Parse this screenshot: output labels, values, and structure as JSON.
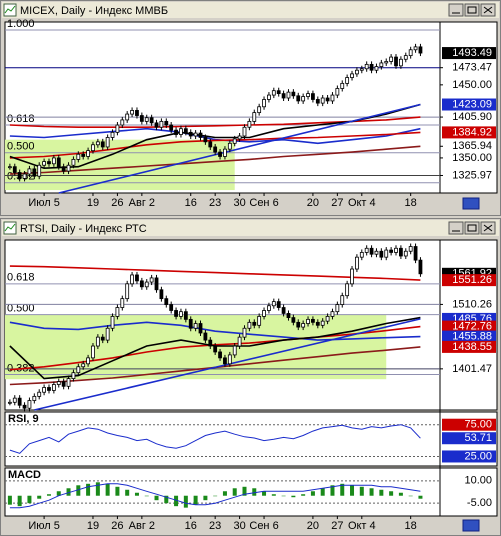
{
  "chart_data": [
    {
      "type": "candlestick",
      "title": "MICEX, Daily - Индекс ММВБ",
      "x": [
        -7,
        -6,
        -5,
        -4,
        -3,
        -2,
        -1,
        0,
        1,
        2,
        3,
        4,
        5,
        6,
        7,
        8,
        9,
        10,
        11,
        12,
        13,
        14,
        15,
        16,
        17,
        18,
        19,
        20,
        21,
        22,
        23,
        24,
        25,
        26,
        27,
        28,
        29,
        30,
        31,
        32,
        33,
        34,
        35,
        36,
        37,
        38,
        39,
        40,
        41,
        42,
        43,
        44,
        45,
        46,
        47,
        48,
        49,
        50,
        51,
        52,
        53,
        54,
        55,
        56,
        57,
        58,
        59,
        60,
        61,
        62,
        63,
        64,
        65,
        66,
        67,
        68,
        69,
        70,
        71,
        72,
        73,
        74,
        75,
        76,
        77
      ],
      "values": [
        1338,
        1330,
        1322,
        1328,
        1335,
        1325,
        1340,
        1345,
        1342,
        1350,
        1338,
        1332,
        1340,
        1348,
        1355,
        1352,
        1360,
        1368,
        1372,
        1365,
        1378,
        1385,
        1395,
        1402,
        1410,
        1415,
        1408,
        1400,
        1405,
        1398,
        1392,
        1400,
        1395,
        1388,
        1382,
        1390,
        1385,
        1380,
        1384,
        1378,
        1372,
        1365,
        1358,
        1352,
        1362,
        1370,
        1376,
        1380,
        1392,
        1400,
        1412,
        1420,
        1430,
        1436,
        1442,
        1438,
        1432,
        1440,
        1435,
        1428,
        1434,
        1438,
        1430,
        1425,
        1432,
        1428,
        1436,
        1445,
        1452,
        1460,
        1465,
        1470,
        1472,
        1478,
        1470,
        1475,
        1480,
        1482,
        1488,
        1476,
        1485,
        1490,
        1498,
        1502,
        1493.49
      ],
      "xlim": [
        -8,
        81
      ],
      "ylim": [
        1302,
        1536
      ],
      "xticks": [
        {
          "value": 0,
          "label": "Июл 5"
        },
        {
          "value": 10,
          "label": "19"
        },
        {
          "value": 15,
          "label": "26"
        },
        {
          "value": 20,
          "label": "Авг 2"
        },
        {
          "value": 30,
          "label": "16"
        },
        {
          "value": 35,
          "label": "23"
        },
        {
          "value": 40,
          "label": "30"
        },
        {
          "value": 45,
          "label": "Сен 6"
        },
        {
          "value": 55,
          "label": "20"
        },
        {
          "value": 60,
          "label": "27"
        },
        {
          "value": 65,
          "label": "Окт 4"
        },
        {
          "value": 75,
          "label": "18"
        }
      ],
      "yticks": [
        {
          "value": 1450,
          "label": "1450.00"
        },
        {
          "value": 1350,
          "label": "1350.00"
        }
      ],
      "fib_levels": [
        {
          "value": 1525,
          "label": "1.000"
        },
        {
          "value": 1395,
          "label": "0.618"
        },
        {
          "value": 1357,
          "label": "0.500"
        },
        {
          "value": 1316,
          "label": "0.382"
        }
      ],
      "fib_zone": {
        "x": [
          -8,
          39
        ],
        "y": [
          1306,
          1375
        ]
      },
      "hlines": [
        {
          "value": 1473.47,
          "color": "#000080"
        },
        {
          "value": 1325.97,
          "color": "#404040"
        },
        {
          "value": 1405.9,
          "color": "#8080a0"
        }
      ],
      "lines": [
        {
          "color": "#cc0000",
          "x": [
            -7,
            0,
            7,
            14,
            21,
            28,
            35,
            42,
            49,
            56,
            63,
            70,
            77
          ],
          "values": [
            1395,
            1393,
            1392,
            1392,
            1392,
            1393,
            1394,
            1395,
            1396,
            1398,
            1400,
            1402,
            1405.9
          ]
        },
        {
          "color": "#1a2ccc",
          "x": [
            -7,
            0,
            7,
            14,
            21,
            28,
            35,
            42,
            49,
            56,
            63,
            70,
            77
          ],
          "values": [
            1380,
            1378,
            1382,
            1386,
            1390,
            1385,
            1375,
            1372,
            1375,
            1370,
            1375,
            1380,
            1390
          ]
        },
        {
          "color": "#cc0000",
          "x": [
            -7,
            0,
            7,
            14,
            21,
            28,
            35,
            42,
            49,
            56,
            63,
            70,
            77
          ],
          "values": [
            1350,
            1352,
            1356,
            1362,
            1368,
            1372,
            1374,
            1375,
            1377,
            1378,
            1380,
            1382,
            1384.92
          ]
        },
        {
          "color": "#8b1a1a",
          "x": [
            -7,
            0,
            7,
            14,
            21,
            28,
            35,
            42,
            49,
            56,
            63,
            70,
            77
          ],
          "values": [
            1328,
            1330,
            1333,
            1336,
            1339,
            1342,
            1345,
            1348,
            1352,
            1355,
            1358,
            1362,
            1365.94
          ]
        },
        {
          "color": "#000000",
          "x": [
            -7,
            0,
            7,
            14,
            21,
            28,
            35,
            42,
            49,
            56,
            63,
            70,
            77
          ],
          "values": [
            1352,
            1336,
            1338,
            1355,
            1375,
            1385,
            1378,
            1378,
            1390,
            1395,
            1400,
            1410,
            1423.09
          ]
        },
        {
          "color": "#1a2ccc",
          "x": [
            3,
            77
          ],
          "values": [
            1302,
            1423.09
          ]
        }
      ],
      "price_labels": [
        {
          "value": 1493.49,
          "box": "#000000"
        },
        {
          "value": 1473.47
        },
        {
          "value": 1423.09,
          "box": "#1a2ccc"
        },
        {
          "value": 1405.9,
          "label": "1405.90"
        },
        {
          "value": 1384.92,
          "box": "#cc0000"
        },
        {
          "value": 1365.94
        },
        {
          "value": 1325.97
        }
      ]
    },
    {
      "type": "candlestick",
      "title": "RTSI, Daily - Индекс РТС",
      "x": [
        -7,
        -6,
        -5,
        -4,
        -3,
        -2,
        -1,
        0,
        1,
        2,
        3,
        4,
        5,
        6,
        7,
        8,
        9,
        10,
        11,
        12,
        13,
        14,
        15,
        16,
        17,
        18,
        19,
        20,
        21,
        22,
        23,
        24,
        25,
        26,
        27,
        28,
        29,
        30,
        31,
        32,
        33,
        34,
        35,
        36,
        37,
        38,
        39,
        40,
        41,
        42,
        43,
        44,
        45,
        46,
        47,
        48,
        49,
        50,
        51,
        52,
        53,
        54,
        55,
        56,
        57,
        58,
        59,
        60,
        61,
        62,
        63,
        64,
        65,
        66,
        67,
        68,
        69,
        70,
        71,
        72,
        73,
        74,
        75,
        76,
        77
      ],
      "values": [
        1345,
        1352,
        1340,
        1335,
        1348,
        1355,
        1362,
        1370,
        1365,
        1375,
        1380,
        1372,
        1385,
        1395,
        1405,
        1410,
        1420,
        1440,
        1455,
        1450,
        1470,
        1490,
        1505,
        1520,
        1545,
        1560,
        1550,
        1540,
        1548,
        1555,
        1535,
        1520,
        1510,
        1500,
        1490,
        1498,
        1485,
        1470,
        1478,
        1462,
        1450,
        1440,
        1430,
        1420,
        1410,
        1425,
        1440,
        1455,
        1470,
        1480,
        1475,
        1490,
        1500,
        1508,
        1515,
        1505,
        1495,
        1488,
        1480,
        1472,
        1478,
        1485,
        1480,
        1475,
        1482,
        1490,
        1498,
        1510,
        1525,
        1545,
        1570,
        1590,
        1598,
        1605,
        1595,
        1600,
        1590,
        1602,
        1598,
        1605,
        1592,
        1600,
        1608,
        1585,
        1561.92
      ],
      "xlim": [
        -8,
        81
      ],
      "ylim": [
        1332,
        1619
      ],
      "xticks": [
        {
          "value": 0,
          "label": "Июл 5"
        },
        {
          "value": 10,
          "label": "19"
        },
        {
          "value": 15,
          "label": "26"
        },
        {
          "value": 20,
          "label": "Авг 2"
        },
        {
          "value": 30,
          "label": "16"
        },
        {
          "value": 35,
          "label": "23"
        },
        {
          "value": 40,
          "label": "30"
        },
        {
          "value": 45,
          "label": "Сен 6"
        },
        {
          "value": 55,
          "label": "20"
        },
        {
          "value": 60,
          "label": "27"
        },
        {
          "value": 65,
          "label": "Окт 4"
        },
        {
          "value": 75,
          "label": "18"
        }
      ],
      "fib_levels": [
        {
          "value": 1545,
          "label": "0.618"
        },
        {
          "value": 1493,
          "label": "0.500"
        },
        {
          "value": 1392,
          "label": "0.382"
        }
      ],
      "fib_zone": {
        "x": [
          -8,
          70
        ],
        "y": [
          1384,
          1493
        ]
      },
      "hlines": [
        {
          "value": 1510.26,
          "color": "#8080a0"
        },
        {
          "value": 1401.47,
          "color": "#404060"
        }
      ],
      "lines": [
        {
          "color": "#cc0000",
          "x": [
            -7,
            0,
            7,
            14,
            21,
            28,
            35,
            42,
            49,
            56,
            63,
            70,
            77
          ],
          "values": [
            1575,
            1574,
            1572,
            1570,
            1568,
            1566,
            1564,
            1562,
            1560,
            1558,
            1556,
            1554,
            1551.26
          ]
        },
        {
          "color": "#1a2ccc",
          "x": [
            -7,
            0,
            7,
            14,
            21,
            28,
            35,
            42,
            49,
            56,
            63,
            70,
            77
          ],
          "values": [
            1480,
            1470,
            1468,
            1475,
            1480,
            1475,
            1465,
            1460,
            1455,
            1450,
            1452,
            1454,
            1455.88
          ]
        },
        {
          "color": "#cc0000",
          "x": [
            -7,
            0,
            7,
            14,
            21,
            28,
            35,
            42,
            49,
            56,
            63,
            70,
            77
          ],
          "values": [
            1400,
            1405,
            1412,
            1420,
            1430,
            1438,
            1442,
            1445,
            1450,
            1455,
            1460,
            1466,
            1472.76
          ]
        },
        {
          "color": "#8b1a1a",
          "x": [
            -7,
            0,
            7,
            14,
            21,
            28,
            35,
            42,
            49,
            56,
            63,
            70,
            77
          ],
          "values": [
            1375,
            1378,
            1382,
            1386,
            1392,
            1398,
            1404,
            1410,
            1416,
            1422,
            1428,
            1433,
            1438.55
          ]
        },
        {
          "color": "#000000",
          "x": [
            -7,
            0,
            7,
            14,
            21,
            28,
            35,
            42,
            49,
            56,
            63,
            70,
            77
          ],
          "values": [
            1440,
            1385,
            1390,
            1415,
            1440,
            1450,
            1440,
            1440,
            1450,
            1455,
            1465,
            1478,
            1488
          ]
        },
        {
          "color": "#1a2ccc",
          "x": [
            -2,
            77
          ],
          "values": [
            1332,
            1485.76
          ]
        }
      ],
      "price_labels": [
        {
          "value": 1561.92,
          "box": "#000000"
        },
        {
          "value": 1551.26,
          "box": "#cc0000"
        },
        {
          "value": 1510.26
        },
        {
          "value": 1485.76,
          "box": "#1a2ccc"
        },
        {
          "value": 1472.76,
          "box": "#cc0000"
        },
        {
          "value": 1455.88,
          "box": "#1a2ccc"
        },
        {
          "value": 1438.55,
          "box": "#cc0000"
        },
        {
          "value": 1401.47
        }
      ]
    },
    {
      "type": "line",
      "title": "RSI, 9",
      "color": "#1a2ccc",
      "grid": true,
      "x": [
        -7,
        -5,
        -3,
        -1,
        1,
        3,
        5,
        7,
        9,
        11,
        13,
        15,
        17,
        19,
        21,
        23,
        25,
        27,
        29,
        31,
        33,
        35,
        37,
        39,
        41,
        43,
        45,
        47,
        49,
        51,
        53,
        55,
        57,
        59,
        61,
        63,
        65,
        67,
        69,
        71,
        73,
        75,
        77
      ],
      "values": [
        35,
        30,
        45,
        50,
        55,
        48,
        60,
        65,
        70,
        68,
        62,
        58,
        55,
        50,
        52,
        45,
        40,
        38,
        42,
        50,
        58,
        62,
        65,
        60,
        56,
        54,
        50,
        52,
        55,
        53,
        58,
        65,
        70,
        72,
        74,
        70,
        68,
        72,
        70,
        73,
        75,
        70,
        53.71
      ],
      "ylim": [
        10,
        95
      ],
      "yticks": [
        {
          "value": 75,
          "label": "75.00"
        },
        {
          "value": 25,
          "label": "25.00"
        }
      ],
      "tick_boxes": [
        "#cc0000",
        "#1a2ccc"
      ],
      "price_labels": [
        {
          "value": 53.71,
          "box": "#1a2ccc"
        }
      ]
    },
    {
      "type": "bar",
      "title": "MACD",
      "color": "#1a8a1a",
      "grid": true,
      "x": [
        -7,
        -5,
        -3,
        -1,
        1,
        3,
        5,
        7,
        9,
        11,
        13,
        15,
        17,
        19,
        21,
        23,
        25,
        27,
        29,
        31,
        33,
        35,
        37,
        39,
        41,
        43,
        45,
        47,
        49,
        51,
        53,
        55,
        57,
        59,
        61,
        63,
        65,
        67,
        69,
        71,
        73,
        75,
        77
      ],
      "values": [
        -6,
        -7,
        -5,
        -2,
        1,
        3,
        5,
        7,
        8,
        9,
        8,
        6,
        4,
        2,
        0,
        -3,
        -5,
        -7,
        -8,
        -6,
        -3,
        0,
        3,
        5,
        6,
        5,
        3,
        1,
        0,
        -1,
        1,
        3,
        5,
        7,
        8,
        7,
        6,
        5,
        4,
        3,
        2,
        0,
        -2
      ],
      "signal": {
        "color": "#1a2ccc",
        "values": [
          -8,
          -8,
          -7,
          -5,
          -3,
          0,
          2,
          4,
          6,
          7,
          8,
          8,
          7,
          5,
          3,
          1,
          -1,
          -3,
          -5,
          -6,
          -6,
          -5,
          -3,
          -1,
          1,
          2,
          3,
          3,
          3,
          3,
          3,
          4,
          5,
          6,
          7,
          7,
          7,
          7,
          6,
          6,
          5,
          4,
          3
        ]
      },
      "ylim": [
        -13.6,
        18.6
      ],
      "yticks": [
        {
          "value": 10,
          "label": "10.00"
        },
        {
          "value": -5,
          "label": "-5.00"
        }
      ]
    }
  ]
}
